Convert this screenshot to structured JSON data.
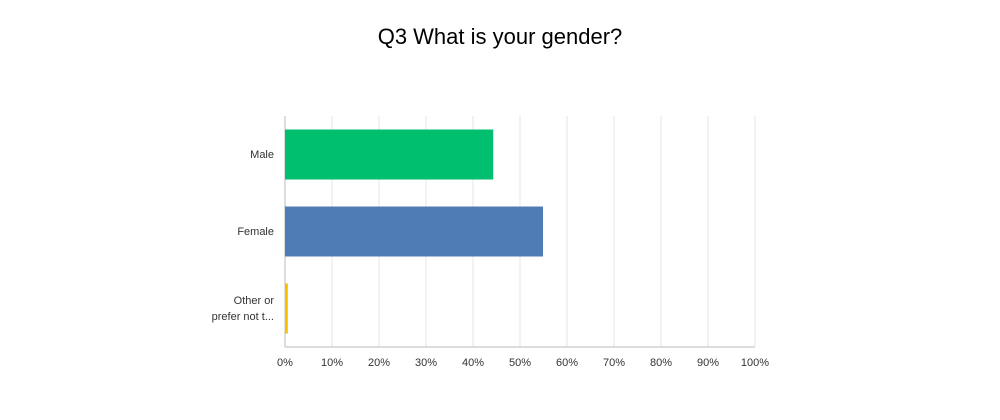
{
  "chart_data": {
    "type": "bar",
    "orientation": "horizontal",
    "title": "Q3 What is your gender?",
    "categories": [
      "Male",
      "Female",
      "Other or prefer not t..."
    ],
    "values": [
      44.3,
      54.9,
      0.6
    ],
    "colors": [
      "#00bf6f",
      "#507cb6",
      "#f9be00"
    ],
    "xlim": [
      0,
      100
    ],
    "xticks": [
      {
        "value": 0,
        "label": "0%"
      },
      {
        "value": 10,
        "label": "10%"
      },
      {
        "value": 20,
        "label": "20%"
      },
      {
        "value": 30,
        "label": "30%"
      },
      {
        "value": 40,
        "label": "40%"
      },
      {
        "value": 50,
        "label": "50%"
      },
      {
        "value": 60,
        "label": "60%"
      },
      {
        "value": 70,
        "label": "70%"
      },
      {
        "value": 80,
        "label": "80%"
      },
      {
        "value": 90,
        "label": "90%"
      },
      {
        "value": 100,
        "label": "100%"
      }
    ],
    "grid": true
  }
}
